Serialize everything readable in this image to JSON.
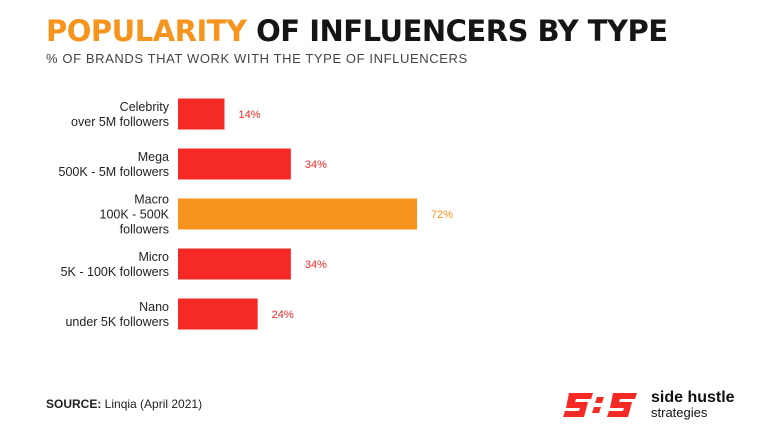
{
  "title": {
    "accent": "POPULARITY",
    "rest": " OF INFLUENCERS BY TYPE"
  },
  "subtitle": "% OF BRANDS THAT WORK WITH THE TYPE OF INFLUENCERS",
  "source": {
    "label": "SOURCE:",
    "text": " Linqia (April 2021)"
  },
  "logo": {
    "line1": "side hustle",
    "line2": "strategies",
    "icon": "sis-logo-icon"
  },
  "colors": {
    "bar": "#F52A25",
    "highlight": "#F7941D",
    "label_text": "#222222"
  },
  "chart_data": {
    "type": "bar",
    "orientation": "horizontal",
    "categories": [
      [
        "Celebrity",
        "over 5M followers"
      ],
      [
        "Mega",
        "500K - 5M followers"
      ],
      [
        "Macro",
        "100K - 500K",
        "followers"
      ],
      [
        "Micro",
        "5K - 100K followers"
      ],
      [
        "Nano",
        "under 5K followers"
      ]
    ],
    "values": [
      14,
      34,
      72,
      34,
      24
    ],
    "data_labels": [
      "14%",
      "34%",
      "72%",
      "34%",
      "24%"
    ],
    "highlight_index": 2,
    "unit": "%",
    "xlim": [
      0,
      100
    ],
    "grid": false,
    "legend": "none"
  }
}
